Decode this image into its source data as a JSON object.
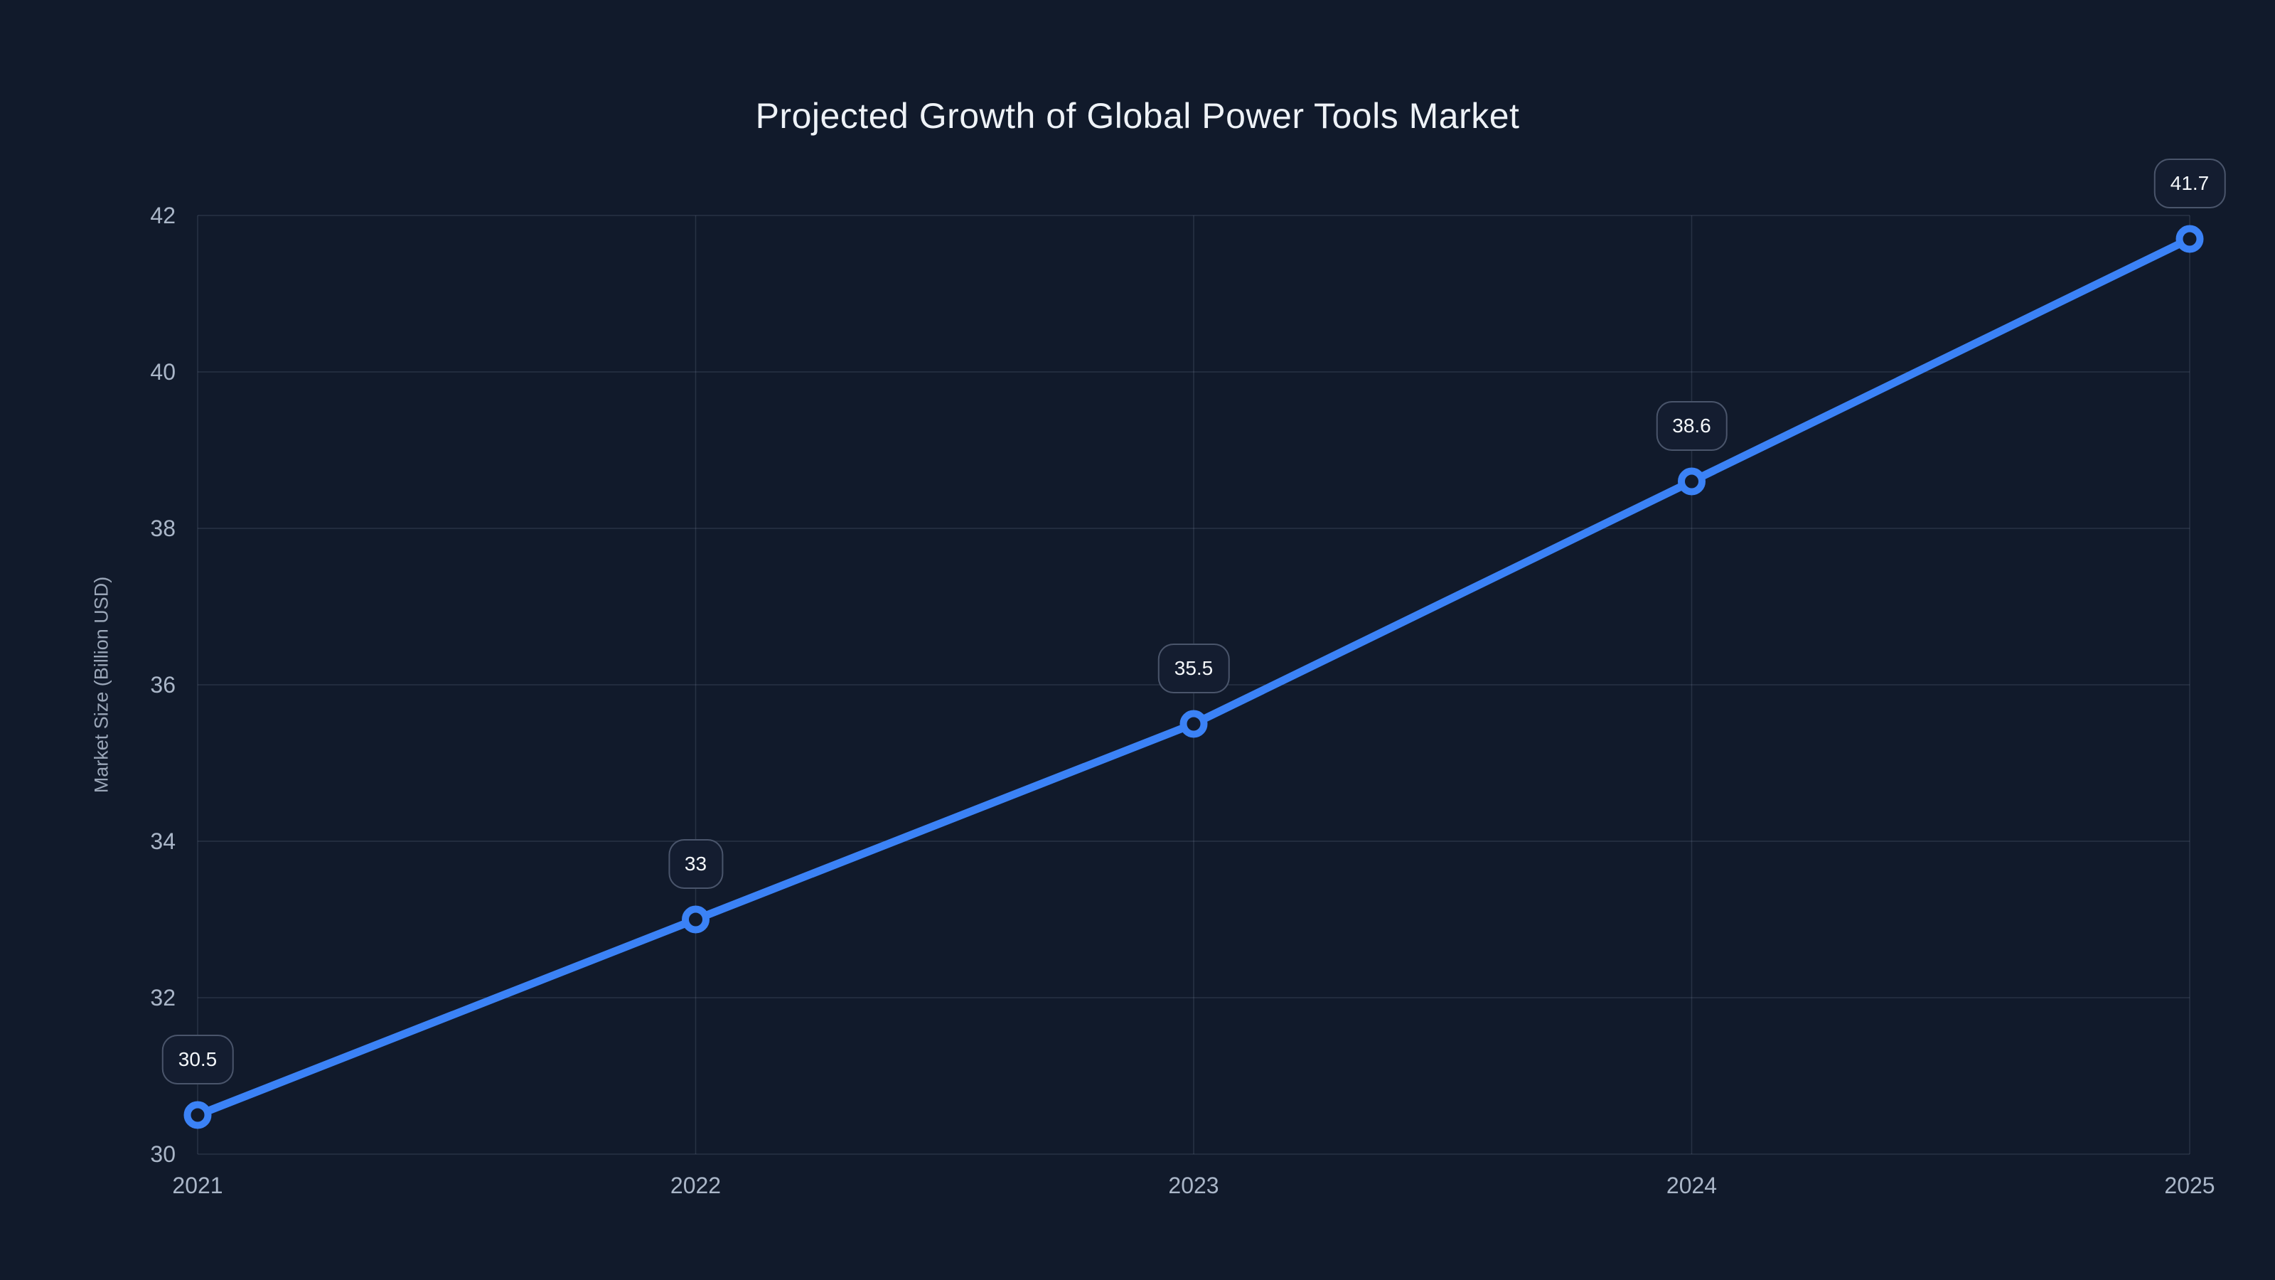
{
  "page": {
    "background_color": "#111a2b"
  },
  "chart_data": {
    "type": "line",
    "title": "Projected Growth of Global Power Tools Market",
    "xlabel": "",
    "ylabel": "Market Size (Billion USD)",
    "x": [
      2021,
      2022,
      2023,
      2024,
      2025
    ],
    "x_tick_labels": [
      "2021",
      "2022",
      "2023",
      "2024",
      "2025"
    ],
    "series": [
      {
        "values": [
          30.5,
          33,
          35.5,
          38.6,
          41.7
        ],
        "data_labels": [
          "30.5",
          "33",
          "35.5",
          "38.6",
          "41.7"
        ]
      }
    ],
    "ylim": [
      30,
      42
    ],
    "yticks": [
      30,
      32,
      34,
      36,
      38,
      40,
      42
    ],
    "grid": true,
    "legend": false,
    "marker_style": "hollow-circle",
    "colors": {
      "line": "#3b82f6",
      "marker_stroke": "#3b82f6",
      "marker_fill": "#111a2b",
      "grid": "rgba(155, 170, 195, 0.17)",
      "tick_text": "#aab6c8",
      "title_text": "#eef2f7",
      "axis_title_text": "#9aa6b8",
      "label_text": "#f4f7fa",
      "label_box_bg": "#141d30",
      "label_box_border": "rgba(150, 165, 190, 0.42)"
    }
  }
}
